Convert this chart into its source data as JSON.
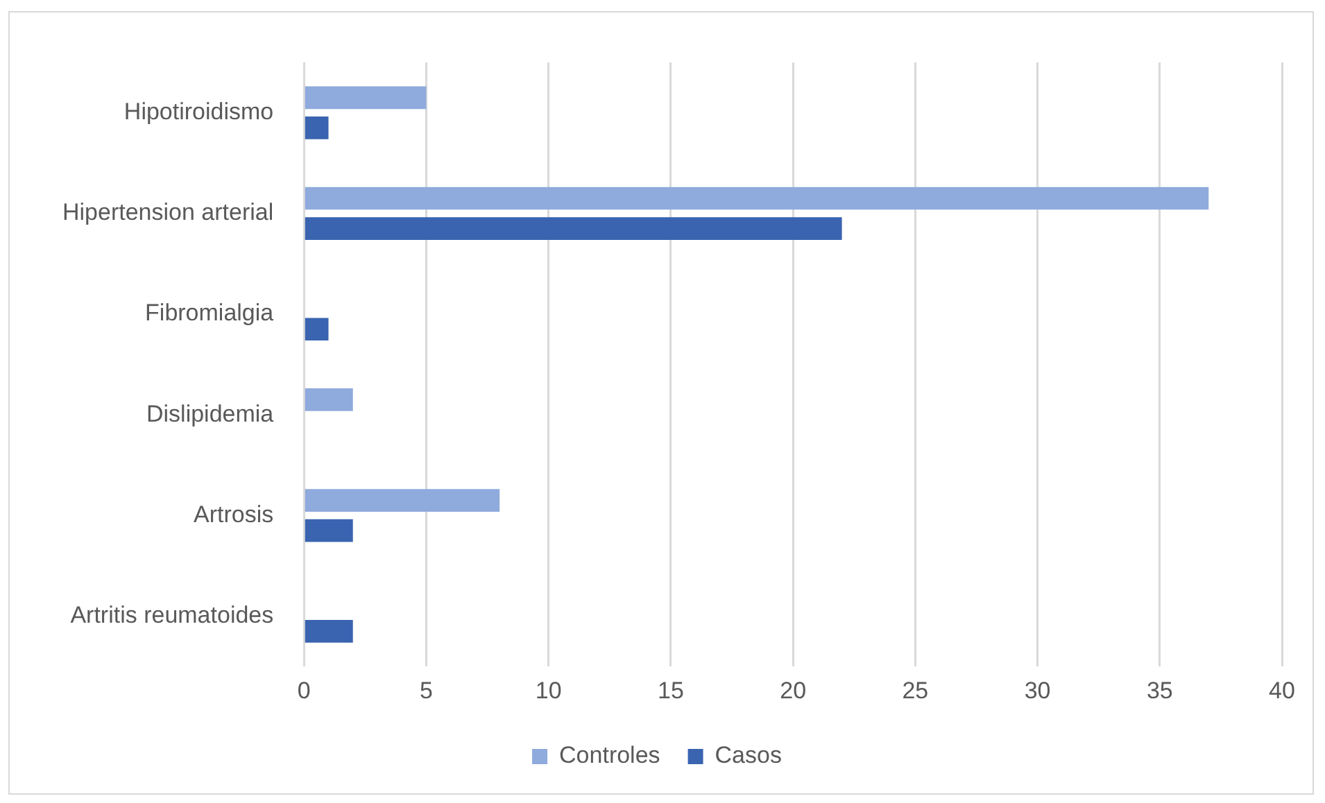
{
  "chart_data": {
    "type": "bar",
    "orientation": "horizontal",
    "categories": [
      "Hipotiroidismo",
      "Hipertension arterial",
      "Fibromialgia",
      "Dislipidemia",
      "Artrosis",
      "Artritis reumatoides"
    ],
    "series": [
      {
        "name": "Controles",
        "color": "#8faadc",
        "values": [
          5,
          37,
          0,
          2,
          8,
          0
        ]
      },
      {
        "name": "Casos",
        "color": "#3a64b0",
        "values": [
          1,
          22,
          1,
          0,
          2,
          2
        ]
      }
    ],
    "xlim": [
      0,
      40
    ],
    "xticks": [
      0,
      5,
      10,
      15,
      20,
      25,
      30,
      35,
      40
    ],
    "grid": "x",
    "legend": "bottom"
  }
}
